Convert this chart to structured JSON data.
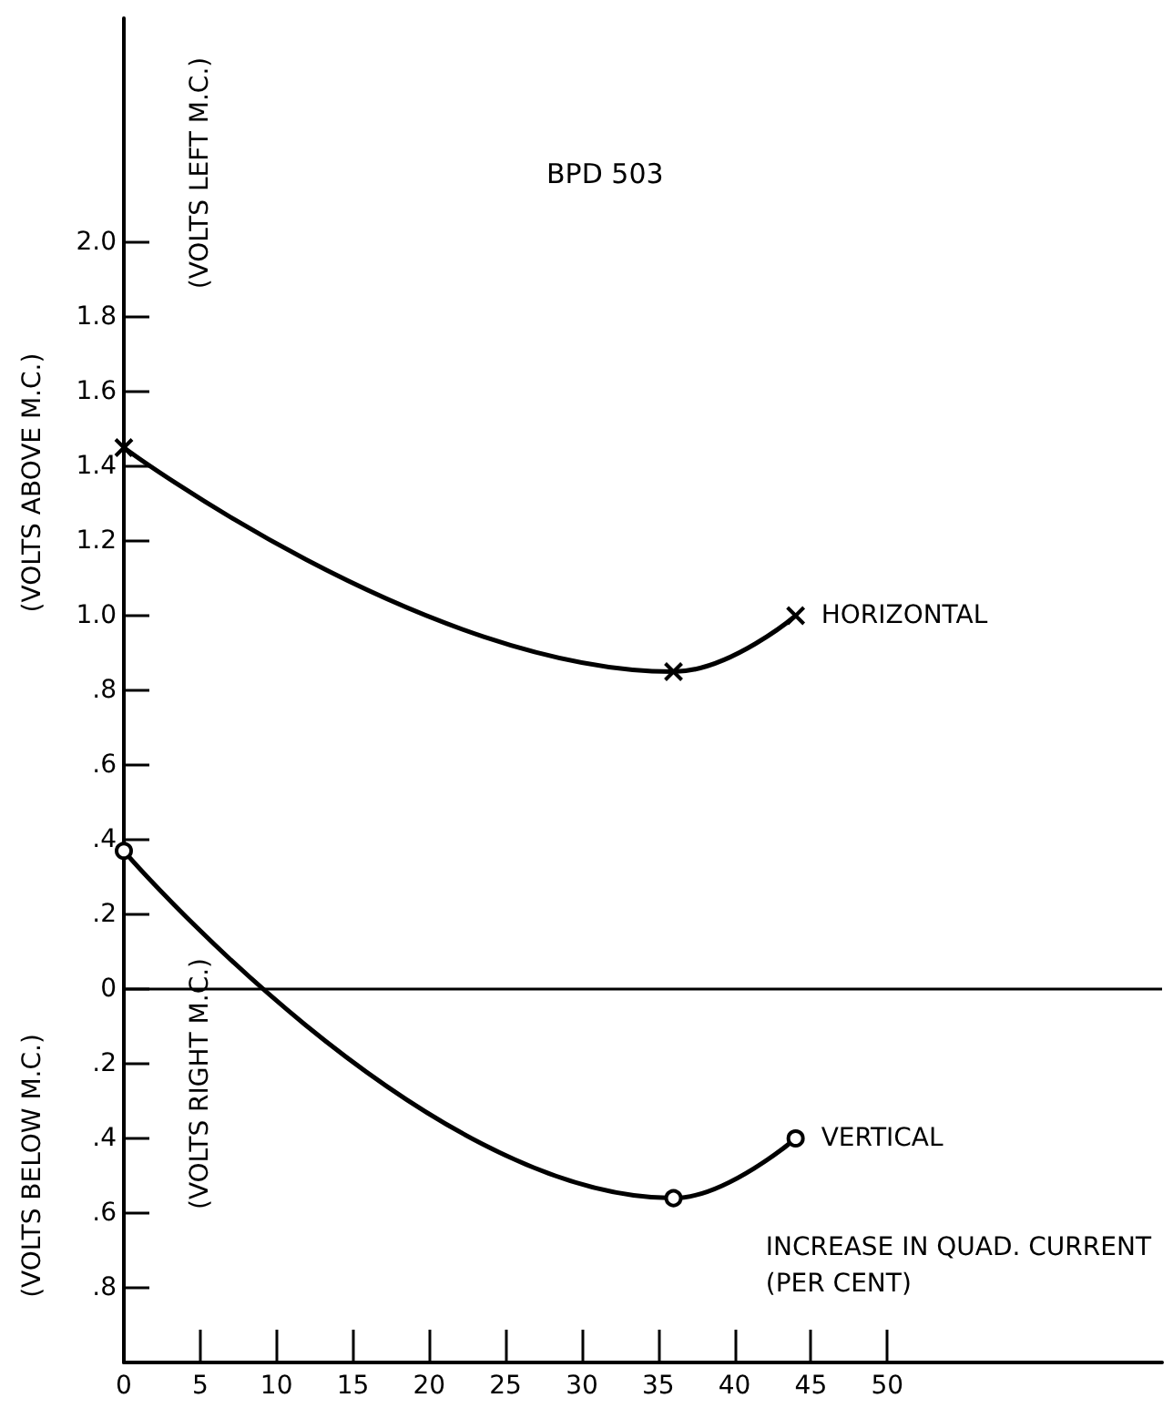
{
  "chart_data": {
    "type": "line",
    "title": "BPD 503",
    "xlabel": "INCREASE IN QUAD. CURRENT\n(PER CENT)",
    "ylabel": "(VOLTS ABOVE M.C.)",
    "annotations": [
      "(VOLTS LEFT M.C.)",
      "(VOLTS BELOW M.C.)",
      "(VOLTS RIGHT M.C.)"
    ],
    "x": [
      0,
      36,
      44
    ],
    "series": [
      {
        "name": "HORIZONTAL",
        "color": "#000000",
        "marker": "cross",
        "values": [
          1.45,
          0.85,
          1.0
        ]
      },
      {
        "name": "VERTICAL",
        "color": "#000000",
        "marker": "circle",
        "values": [
          0.37,
          -0.56,
          -0.4
        ]
      }
    ],
    "xlim": [
      0,
      68
    ],
    "xticks": [
      0,
      5,
      10,
      15,
      20,
      25,
      30,
      35,
      40,
      45,
      50
    ],
    "ylim": [
      -1.0,
      2.6
    ],
    "yticks": [
      {
        "value": -0.8,
        "label": ".8"
      },
      {
        "value": -0.6,
        "label": ".6"
      },
      {
        "value": -0.4,
        "label": ".4"
      },
      {
        "value": -0.2,
        "label": ".2"
      },
      0,
      {
        "value": 0.2,
        "label": ".2"
      },
      {
        "value": 0.4,
        "label": ".4"
      },
      {
        "value": 0.6,
        "label": ".6"
      },
      {
        "value": 0.8,
        "label": ".8"
      },
      {
        "value": 1.0,
        "label": "1.0"
      },
      {
        "value": 1.2,
        "label": "1.2"
      },
      {
        "value": 1.4,
        "label": "1.4"
      },
      {
        "value": 1.6,
        "label": "1.6"
      },
      {
        "value": 1.8,
        "label": "1.8"
      },
      {
        "value": 2.0,
        "label": "2.0"
      }
    ],
    "ref_lines": [
      {
        "axis": "y",
        "value": 0,
        "color": "#000000"
      }
    ],
    "grid": false,
    "legend": false,
    "line_style": "solid"
  }
}
